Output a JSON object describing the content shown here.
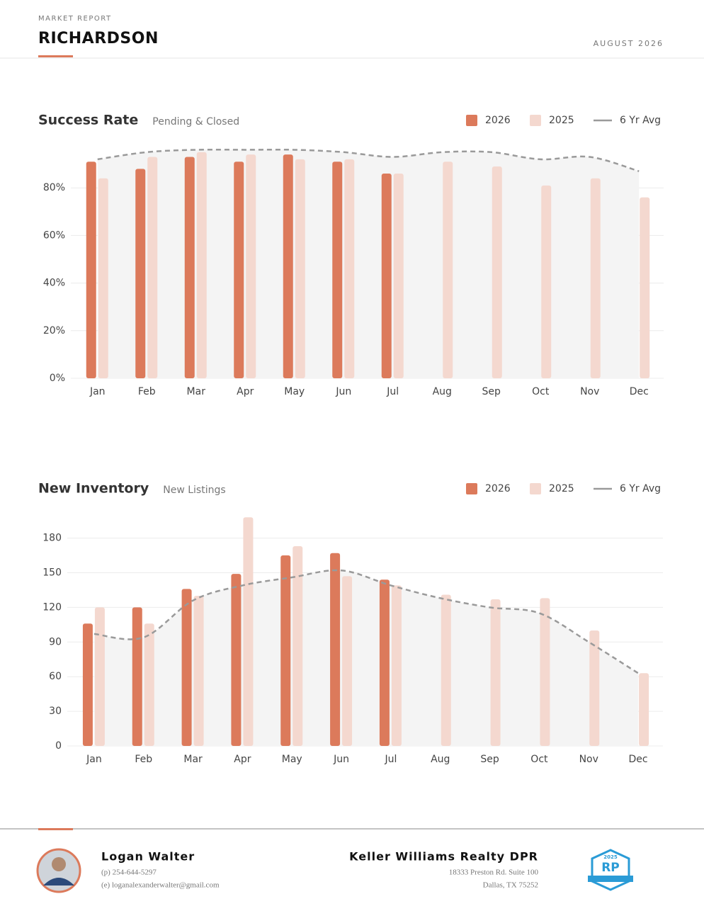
{
  "header": {
    "kicker": "MARKET REPORT",
    "title": "RICHARDSON",
    "date": "AUGUST 2026"
  },
  "chart_data": [
    {
      "type": "bar",
      "title": "Success Rate",
      "subtitle": "Pending & Closed",
      "categories": [
        "Jan",
        "Feb",
        "Mar",
        "Apr",
        "May",
        "Jun",
        "Jul",
        "Aug",
        "Sep",
        "Oct",
        "Nov",
        "Dec"
      ],
      "series": [
        {
          "name": "2026",
          "color": "#dc7a5b",
          "values": [
            91,
            88,
            93,
            91,
            94,
            91,
            86,
            null,
            null,
            null,
            null,
            null
          ]
        },
        {
          "name": "2025",
          "color": "#f4d8cf",
          "values": [
            84,
            93,
            95,
            94,
            92,
            92,
            86,
            91,
            89,
            81,
            84,
            76
          ]
        },
        {
          "name": "6 Yr Avg",
          "color": "#9a9a9a",
          "type": "line",
          "dashed": true,
          "values": [
            92,
            95,
            96,
            96,
            96,
            95,
            93,
            95,
            95,
            92,
            93,
            87
          ]
        }
      ],
      "ylim": [
        0,
        100
      ],
      "yticks": [
        {
          "value": 0,
          "label": "0%"
        },
        {
          "value": 20,
          "label": "20%"
        },
        {
          "value": 40,
          "label": "40%"
        },
        {
          "value": 60,
          "label": "60%"
        },
        {
          "value": 80,
          "label": "80%"
        }
      ],
      "grid": true
    },
    {
      "type": "bar",
      "title": "New Inventory",
      "subtitle": "New Listings",
      "categories": [
        "Jan",
        "Feb",
        "Mar",
        "Apr",
        "May",
        "Jun",
        "Jul",
        "Aug",
        "Sep",
        "Oct",
        "Nov",
        "Dec"
      ],
      "series": [
        {
          "name": "2026",
          "color": "#dc7a5b",
          "values": [
            106,
            120,
            136,
            149,
            165,
            167,
            144,
            null,
            null,
            null,
            null,
            null
          ]
        },
        {
          "name": "2025",
          "color": "#f4d8cf",
          "values": [
            120,
            106,
            130,
            198,
            173,
            147,
            139,
            131,
            127,
            128,
            100,
            63
          ]
        },
        {
          "name": "6 Yr Avg",
          "color": "#9a9a9a",
          "type": "line",
          "dashed": true,
          "values": [
            97,
            94,
            126,
            139,
            146,
            152,
            139,
            128,
            120,
            115,
            90,
            63
          ]
        }
      ],
      "ylim": [
        0,
        200
      ],
      "yticks": [
        0,
        30,
        60,
        90,
        120,
        150,
        180
      ],
      "grid": true
    }
  ],
  "footer": {
    "name": "Logan Walter",
    "phone": "(p) 254-644-5297",
    "email": "(e) loganalexanderwalter@gmail.com",
    "company": "Keller Williams Realty DPR",
    "address1": "18333 Preston Rd. Suite 100",
    "address2": "Dallas, TX 75252",
    "badge_year": "2025",
    "badge_text": "RP"
  }
}
